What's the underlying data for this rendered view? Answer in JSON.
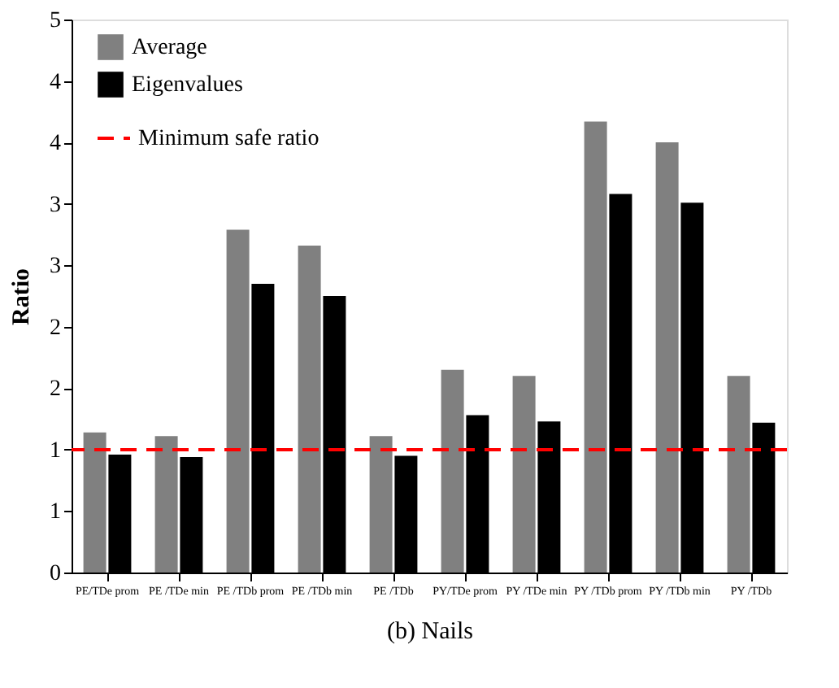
{
  "chart_data": {
    "type": "bar",
    "xlabel": "(b) Nails",
    "ylabel": "Ratio",
    "categories": [
      "PE/TDe prom",
      "PE /TDe min",
      "PE /TDb prom",
      "PE /TDb min",
      "PE /TDb",
      "PY/TDe prom",
      "PY /TDe min",
      "PY /TDb prom",
      "PY /TDb min",
      "PY /TDb"
    ],
    "series": [
      {
        "name": "Average",
        "color": "#808080",
        "values": [
          1.14,
          1.11,
          2.79,
          2.66,
          1.11,
          1.65,
          1.6,
          3.67,
          3.5,
          1.6
        ]
      },
      {
        "name": "Eigenvalues",
        "color": "#000000",
        "values": [
          0.96,
          0.94,
          2.35,
          2.25,
          0.95,
          1.28,
          1.23,
          3.08,
          3.01,
          1.22
        ]
      }
    ],
    "ylim": [
      0,
      4.5
    ],
    "yticks": [
      0,
      {
        "value": 0.5,
        "label": "1"
      },
      1,
      {
        "value": 1.5,
        "label": "2"
      },
      2,
      {
        "value": 2.5,
        "label": "3"
      },
      3,
      {
        "value": 3.5,
        "label": "4"
      },
      4,
      {
        "value": 4.5,
        "label": "5"
      }
    ],
    "ref_lines": [
      {
        "axis": "y",
        "value": 1,
        "label": "Minimum safe ratio",
        "color": "#ff0000",
        "line_style": "dashed"
      }
    ],
    "grid": false,
    "legend": "top left"
  }
}
